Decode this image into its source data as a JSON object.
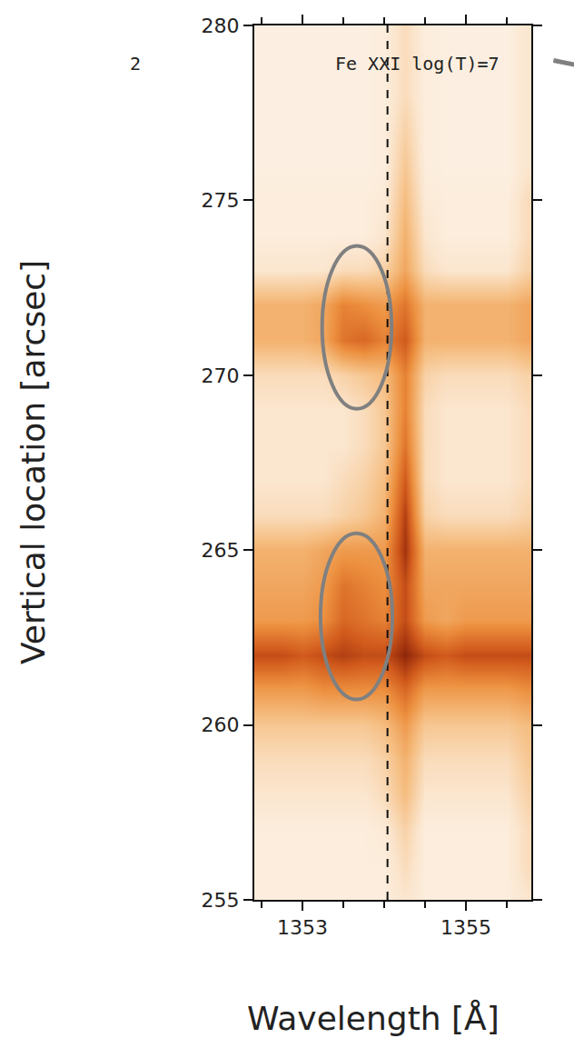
{
  "chart_data": {
    "type": "heatmap",
    "annotations": [
      "2",
      "Fe XXI log(T)=7"
    ],
    "x_label": "Wavelength [Å]",
    "y_label": "Vertical location [arcsec]",
    "xlim": [
      1352.41,
      1355.8
    ],
    "ylim": [
      255,
      280
    ],
    "xticks": [
      1353,
      1355
    ],
    "xminor_ticks": [
      1352.5,
      1353.5,
      1354,
      1354.5,
      1355.5
    ],
    "yticks": [
      255,
      260,
      265,
      270,
      275,
      280
    ],
    "zlim": [
      0,
      10
    ],
    "reference_line_x": 1354.04,
    "ellipses": [
      {
        "x": [
          1353.24,
          1354.09
        ],
        "y": [
          269.04,
          273.7
        ]
      },
      {
        "x": [
          1353.22,
          1354.1
        ],
        "y": [
          260.73,
          265.48
        ]
      }
    ],
    "leader_start": {
      "x": 1354.04,
      "y": 273.66
    },
    "x": [
      1352.5,
      1352.75,
      1353,
      1353.25,
      1353.5,
      1353.75,
      1354,
      1354.25,
      1354.5,
      1354.75,
      1355,
      1355.25,
      1355.5,
      1355.75
    ],
    "y": [
      255,
      256,
      257,
      258,
      259,
      260,
      261,
      262,
      263,
      264,
      265,
      266,
      267,
      268,
      269,
      270,
      271,
      272,
      273,
      274,
      275,
      276,
      277,
      278,
      279,
      280
    ],
    "z": [
      [
        1,
        1,
        1,
        1,
        1,
        1,
        1,
        1.5,
        1,
        1,
        1,
        1,
        1,
        1.5
      ],
      [
        1,
        1,
        1,
        1,
        1,
        1,
        1,
        2,
        1,
        1,
        1,
        1,
        1,
        2
      ],
      [
        1,
        1,
        1,
        1,
        1,
        1,
        1.2,
        2.5,
        1,
        1,
        1,
        1,
        1,
        2
      ],
      [
        1.5,
        1.5,
        1.5,
        1.5,
        1.5,
        1.5,
        2,
        3.5,
        1.5,
        1.5,
        1.5,
        1.5,
        1.5,
        2.5
      ],
      [
        2,
        2,
        2,
        2,
        2,
        2,
        2.5,
        4,
        2,
        2,
        2,
        2,
        2,
        3
      ],
      [
        3,
        3,
        3,
        3,
        3,
        3,
        3.5,
        5,
        3,
        3,
        3,
        3,
        3,
        3.5
      ],
      [
        5,
        5,
        5,
        5.5,
        5.5,
        5.5,
        5.5,
        7,
        5,
        5,
        5,
        5,
        5,
        5.5
      ],
      [
        8,
        8,
        7.5,
        8,
        8.5,
        8,
        8,
        9.5,
        8,
        7.5,
        8,
        8,
        8,
        8
      ],
      [
        5,
        5,
        5,
        5.5,
        7,
        6.5,
        6,
        8,
        5,
        4.5,
        5,
        5,
        5,
        5
      ],
      [
        4.5,
        4.5,
        4.5,
        5,
        6.5,
        6,
        5.5,
        8,
        4.5,
        4.5,
        4.5,
        4.5,
        4.5,
        4.5
      ],
      [
        4,
        4,
        4,
        4.5,
        5,
        5,
        5,
        9,
        4,
        4,
        4,
        4,
        4,
        4
      ],
      [
        2,
        2,
        2,
        2,
        2.5,
        3,
        4,
        8.5,
        2.5,
        2,
        2,
        2,
        2,
        2.5
      ],
      [
        1.5,
        1.5,
        1.5,
        1.5,
        2,
        2.5,
        3.5,
        7.5,
        2,
        1.5,
        1.5,
        1.5,
        1.5,
        2
      ],
      [
        1.5,
        1.5,
        1.5,
        1.5,
        1.5,
        2,
        3,
        6.5,
        2,
        1.5,
        1.5,
        1.5,
        1.5,
        2
      ],
      [
        1.5,
        1.5,
        1.5,
        1.5,
        1.5,
        2,
        3,
        6,
        2,
        1.5,
        1.5,
        1.5,
        1.5,
        2
      ],
      [
        2,
        2,
        2,
        2,
        2.5,
        3,
        3.5,
        6,
        2.5,
        2,
        2,
        2,
        2,
        2.5
      ],
      [
        4,
        4,
        4,
        4.5,
        6.5,
        7,
        6,
        7.5,
        4,
        4,
        4,
        4,
        4,
        4.5
      ],
      [
        4,
        4,
        4,
        4.5,
        6,
        5.5,
        5,
        6.5,
        4,
        4,
        4,
        4,
        4,
        4.5
      ],
      [
        1.5,
        1.5,
        1.5,
        1.5,
        2,
        2,
        2.5,
        4.5,
        2,
        1.5,
        1.5,
        1.5,
        1.5,
        2.5
      ],
      [
        1,
        1,
        1,
        1,
        1,
        1,
        1.5,
        4,
        1.5,
        1,
        1,
        1,
        1,
        2
      ],
      [
        1,
        1,
        1,
        1,
        1,
        1,
        1.2,
        3.5,
        1.2,
        1,
        1,
        1,
        1,
        2
      ],
      [
        0.8,
        0.8,
        0.8,
        0.8,
        0.8,
        0.8,
        1,
        3,
        1,
        0.8,
        0.8,
        0.8,
        0.8,
        1.5
      ],
      [
        0.8,
        0.8,
        0.8,
        0.8,
        0.8,
        0.8,
        1,
        2.5,
        1,
        0.8,
        0.8,
        0.8,
        0.8,
        1.5
      ],
      [
        0.8,
        0.8,
        0.8,
        0.8,
        0.8,
        0.8,
        1,
        2,
        1,
        0.8,
        0.8,
        0.8,
        0.8,
        1.5
      ],
      [
        0.8,
        0.8,
        0.8,
        0.8,
        0.8,
        0.8,
        1,
        2,
        1,
        0.8,
        0.8,
        0.8,
        0.8,
        1.5
      ],
      [
        0.8,
        0.8,
        0.8,
        0.8,
        0.8,
        0.8,
        1,
        2,
        1,
        0.8,
        0.8,
        0.8,
        0.8,
        1.5
      ]
    ]
  }
}
